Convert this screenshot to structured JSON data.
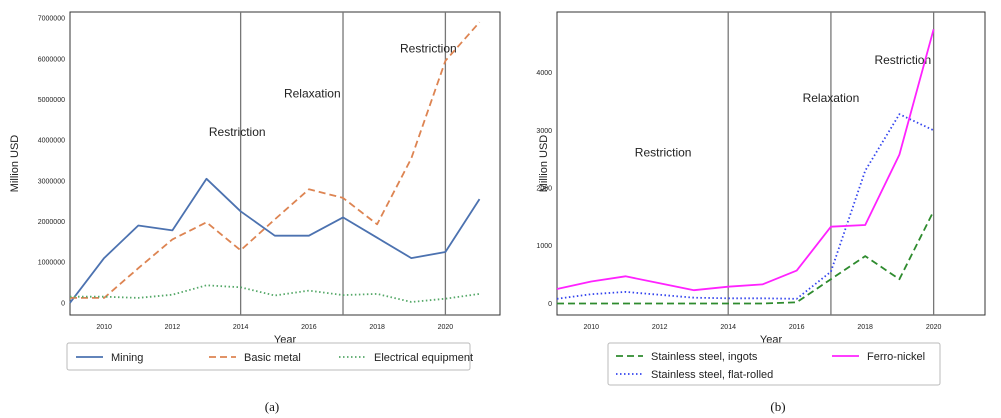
{
  "chart_data": [
    {
      "type": "line",
      "xlabel": "Year",
      "ylabel": "Million USD",
      "xlim": [
        2009,
        2021.6
      ],
      "ylim": [
        -300000,
        7150000
      ],
      "xticks": [
        2010,
        2012,
        2014,
        2016,
        2018,
        2020
      ],
      "yticks": [
        0,
        1000000,
        2000000,
        3000000,
        4000000,
        5000000,
        6000000,
        7000000
      ],
      "x": [
        2009,
        2010,
        2011,
        2012,
        2013,
        2014,
        2015,
        2016,
        2017,
        2018,
        2019,
        2020,
        2021
      ],
      "series": [
        {
          "name": "Mining",
          "color": "#4c72b0",
          "dash": "solid",
          "values": [
            0,
            1100000,
            1900000,
            1780000,
            3050000,
            2250000,
            1650000,
            1650000,
            2100000,
            1600000,
            1100000,
            1250000,
            2550000
          ]
        },
        {
          "name": "Basic metal",
          "color": "#dd8452",
          "dash": "dashed",
          "values": [
            120000,
            120000,
            850000,
            1560000,
            1980000,
            1290000,
            2050000,
            2790000,
            2580000,
            1930000,
            3550000,
            5950000,
            6900000
          ]
        },
        {
          "name": "Electrical equipment",
          "color": "#55a868",
          "dash": "dotted",
          "values": [
            150000,
            150000,
            120000,
            200000,
            430000,
            380000,
            180000,
            300000,
            190000,
            220000,
            20000,
            100000,
            220000
          ]
        }
      ],
      "vlines": [
        2014,
        2017,
        2020
      ],
      "annotations": [
        {
          "text": "Restriction",
          "x": 2013.9,
          "y": 4100000
        },
        {
          "text": "Relaxation",
          "x": 2016.1,
          "y": 5050000
        },
        {
          "text": "Restriction",
          "x": 2019.5,
          "y": 6150000
        }
      ],
      "legend_position": "below",
      "caption": "(a)"
    },
    {
      "type": "line",
      "xlabel": "Year",
      "ylabel": "Million USD",
      "xlim": [
        2009,
        2021.5
      ],
      "ylim": [
        -200,
        5050
      ],
      "xticks": [
        2010,
        2012,
        2014,
        2016,
        2018,
        2020
      ],
      "yticks": [
        0,
        1000,
        2000,
        3000,
        4000
      ],
      "x": [
        2009,
        2010,
        2011,
        2012,
        2013,
        2014,
        2015,
        2016,
        2017,
        2018,
        2019,
        2020
      ],
      "series": [
        {
          "name": "Stainless steel, ingots",
          "color": "#2e8b2e",
          "dash": "dashed",
          "values": [
            0,
            0,
            0,
            0,
            0,
            0,
            0,
            20,
            420,
            820,
            420,
            1600
          ]
        },
        {
          "name": "Stainless steel, flat-rolled",
          "color": "#3344ee",
          "dash": "dotted",
          "values": [
            80,
            160,
            200,
            150,
            100,
            90,
            90,
            80,
            550,
            2300,
            3280,
            3000
          ]
        },
        {
          "name": "Ferro-nickel",
          "color": "#ff22ff",
          "dash": "solid",
          "values": [
            250,
            380,
            470,
            350,
            230,
            290,
            330,
            570,
            1330,
            1360,
            2580,
            4750
          ]
        }
      ],
      "vlines": [
        2014,
        2017,
        2020
      ],
      "annotations": [
        {
          "text": "Restriction",
          "x": 2012.1,
          "y": 2550
        },
        {
          "text": "Relaxation",
          "x": 2017.0,
          "y": 3490
        },
        {
          "text": "Restriction",
          "x": 2019.1,
          "y": 4150
        }
      ],
      "legend_position": "below",
      "caption": "(b)"
    }
  ]
}
